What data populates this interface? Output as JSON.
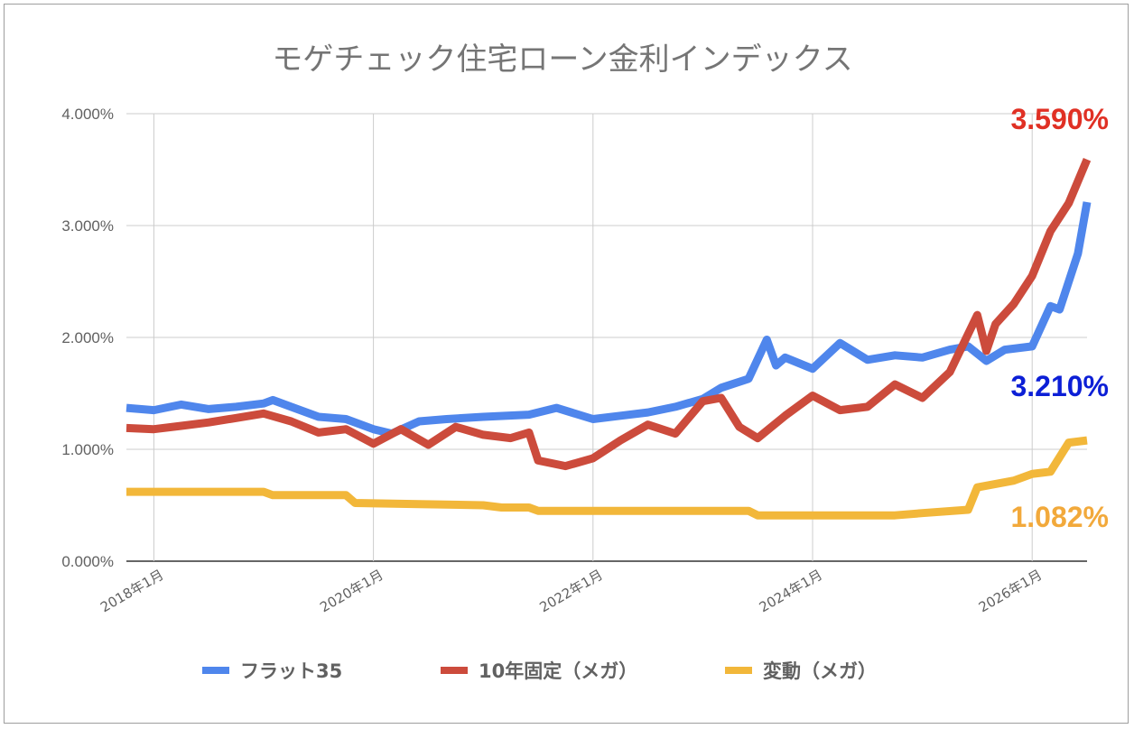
{
  "chart_data": {
    "type": "line",
    "title": "モゲチェック住宅ローン金利インデックス",
    "xlabel": "",
    "ylabel": "",
    "y_format": "percent_3dp",
    "ylim": [
      0.0,
      4.0
    ],
    "yticks": [
      "0.000%",
      "1.000%",
      "2.000%",
      "3.000%",
      "4.000%"
    ],
    "xticks": [
      "2018年1月",
      "2020年1月",
      "2022年1月",
      "2024年1月",
      "2026年1月"
    ],
    "x_range": [
      "2017-10",
      "2026-07"
    ],
    "grid": true,
    "legend_position": "bottom",
    "series": [
      {
        "name": "フラット35",
        "color": "#4f86ec",
        "end_label": "3.210%",
        "end_label_color": "#0c1fd6",
        "points": [
          [
            "2017-10",
            1.37
          ],
          [
            "2018-01",
            1.35
          ],
          [
            "2018-04",
            1.4
          ],
          [
            "2018-07",
            1.36
          ],
          [
            "2018-10",
            1.38
          ],
          [
            "2019-01",
            1.41
          ],
          [
            "2019-02",
            1.44
          ],
          [
            "2019-04",
            1.38
          ],
          [
            "2019-07",
            1.29
          ],
          [
            "2019-10",
            1.27
          ],
          [
            "2020-01",
            1.18
          ],
          [
            "2020-03",
            1.14
          ],
          [
            "2020-06",
            1.25
          ],
          [
            "2020-09",
            1.27
          ],
          [
            "2021-01",
            1.29
          ],
          [
            "2021-06",
            1.31
          ],
          [
            "2021-09",
            1.37
          ],
          [
            "2022-01",
            1.27
          ],
          [
            "2022-04",
            1.3
          ],
          [
            "2022-07",
            1.33
          ],
          [
            "2022-10",
            1.38
          ],
          [
            "2023-01",
            1.45
          ],
          [
            "2023-03",
            1.55
          ],
          [
            "2023-06",
            1.63
          ],
          [
            "2023-08",
            1.98
          ],
          [
            "2023-09",
            1.75
          ],
          [
            "2023-10",
            1.82
          ],
          [
            "2024-01",
            1.72
          ],
          [
            "2024-04",
            1.95
          ],
          [
            "2024-07",
            1.8
          ],
          [
            "2024-10",
            1.84
          ],
          [
            "2025-01",
            1.82
          ],
          [
            "2025-04",
            1.89
          ],
          [
            "2025-06",
            1.92
          ],
          [
            "2025-08",
            1.79
          ],
          [
            "2025-10",
            1.89
          ],
          [
            "2026-01",
            1.92
          ],
          [
            "2026-03",
            2.28
          ],
          [
            "2026-04",
            2.25
          ],
          [
            "2026-06",
            2.75
          ],
          [
            "2026-07",
            3.21
          ]
        ]
      },
      {
        "name": "10年固定（メガ）",
        "color": "#cc4b3c",
        "end_label": "3.590%",
        "end_label_color": "#e03024",
        "points": [
          [
            "2017-10",
            1.19
          ],
          [
            "2018-01",
            1.18
          ],
          [
            "2018-04",
            1.21
          ],
          [
            "2018-07",
            1.24
          ],
          [
            "2018-10",
            1.28
          ],
          [
            "2019-01",
            1.32
          ],
          [
            "2019-04",
            1.25
          ],
          [
            "2019-07",
            1.15
          ],
          [
            "2019-10",
            1.18
          ],
          [
            "2020-01",
            1.05
          ],
          [
            "2020-04",
            1.18
          ],
          [
            "2020-07",
            1.04
          ],
          [
            "2020-10",
            1.2
          ],
          [
            "2021-01",
            1.13
          ],
          [
            "2021-04",
            1.1
          ],
          [
            "2021-06",
            1.15
          ],
          [
            "2021-07",
            0.9
          ],
          [
            "2021-10",
            0.85
          ],
          [
            "2022-01",
            0.92
          ],
          [
            "2022-04",
            1.08
          ],
          [
            "2022-07",
            1.22
          ],
          [
            "2022-10",
            1.14
          ],
          [
            "2023-01",
            1.43
          ],
          [
            "2023-03",
            1.46
          ],
          [
            "2023-05",
            1.2
          ],
          [
            "2023-07",
            1.1
          ],
          [
            "2023-10",
            1.3
          ],
          [
            "2024-01",
            1.48
          ],
          [
            "2024-04",
            1.35
          ],
          [
            "2024-07",
            1.38
          ],
          [
            "2024-10",
            1.58
          ],
          [
            "2025-01",
            1.46
          ],
          [
            "2025-04",
            1.69
          ],
          [
            "2025-07",
            2.2
          ],
          [
            "2025-08",
            1.88
          ],
          [
            "2025-09",
            2.12
          ],
          [
            "2025-11",
            2.3
          ],
          [
            "2026-01",
            2.55
          ],
          [
            "2026-03",
            2.95
          ],
          [
            "2026-05",
            3.2
          ],
          [
            "2026-07",
            3.59
          ]
        ]
      },
      {
        "name": "変動（メガ）",
        "color": "#f2b73a",
        "end_label": "1.082%",
        "end_label_color": "#f2a93b",
        "points": [
          [
            "2017-10",
            0.62
          ],
          [
            "2019-01",
            0.62
          ],
          [
            "2019-02",
            0.59
          ],
          [
            "2019-10",
            0.59
          ],
          [
            "2019-11",
            0.52
          ],
          [
            "2020-06",
            0.51
          ],
          [
            "2021-01",
            0.5
          ],
          [
            "2021-03",
            0.48
          ],
          [
            "2021-06",
            0.48
          ],
          [
            "2021-07",
            0.45
          ],
          [
            "2023-06",
            0.45
          ],
          [
            "2023-07",
            0.41
          ],
          [
            "2024-10",
            0.41
          ],
          [
            "2025-01",
            0.43
          ],
          [
            "2025-06",
            0.46
          ],
          [
            "2025-07",
            0.66
          ],
          [
            "2025-11",
            0.72
          ],
          [
            "2026-01",
            0.78
          ],
          [
            "2026-03",
            0.8
          ],
          [
            "2026-05",
            1.06
          ],
          [
            "2026-07",
            1.08
          ]
        ]
      }
    ]
  }
}
